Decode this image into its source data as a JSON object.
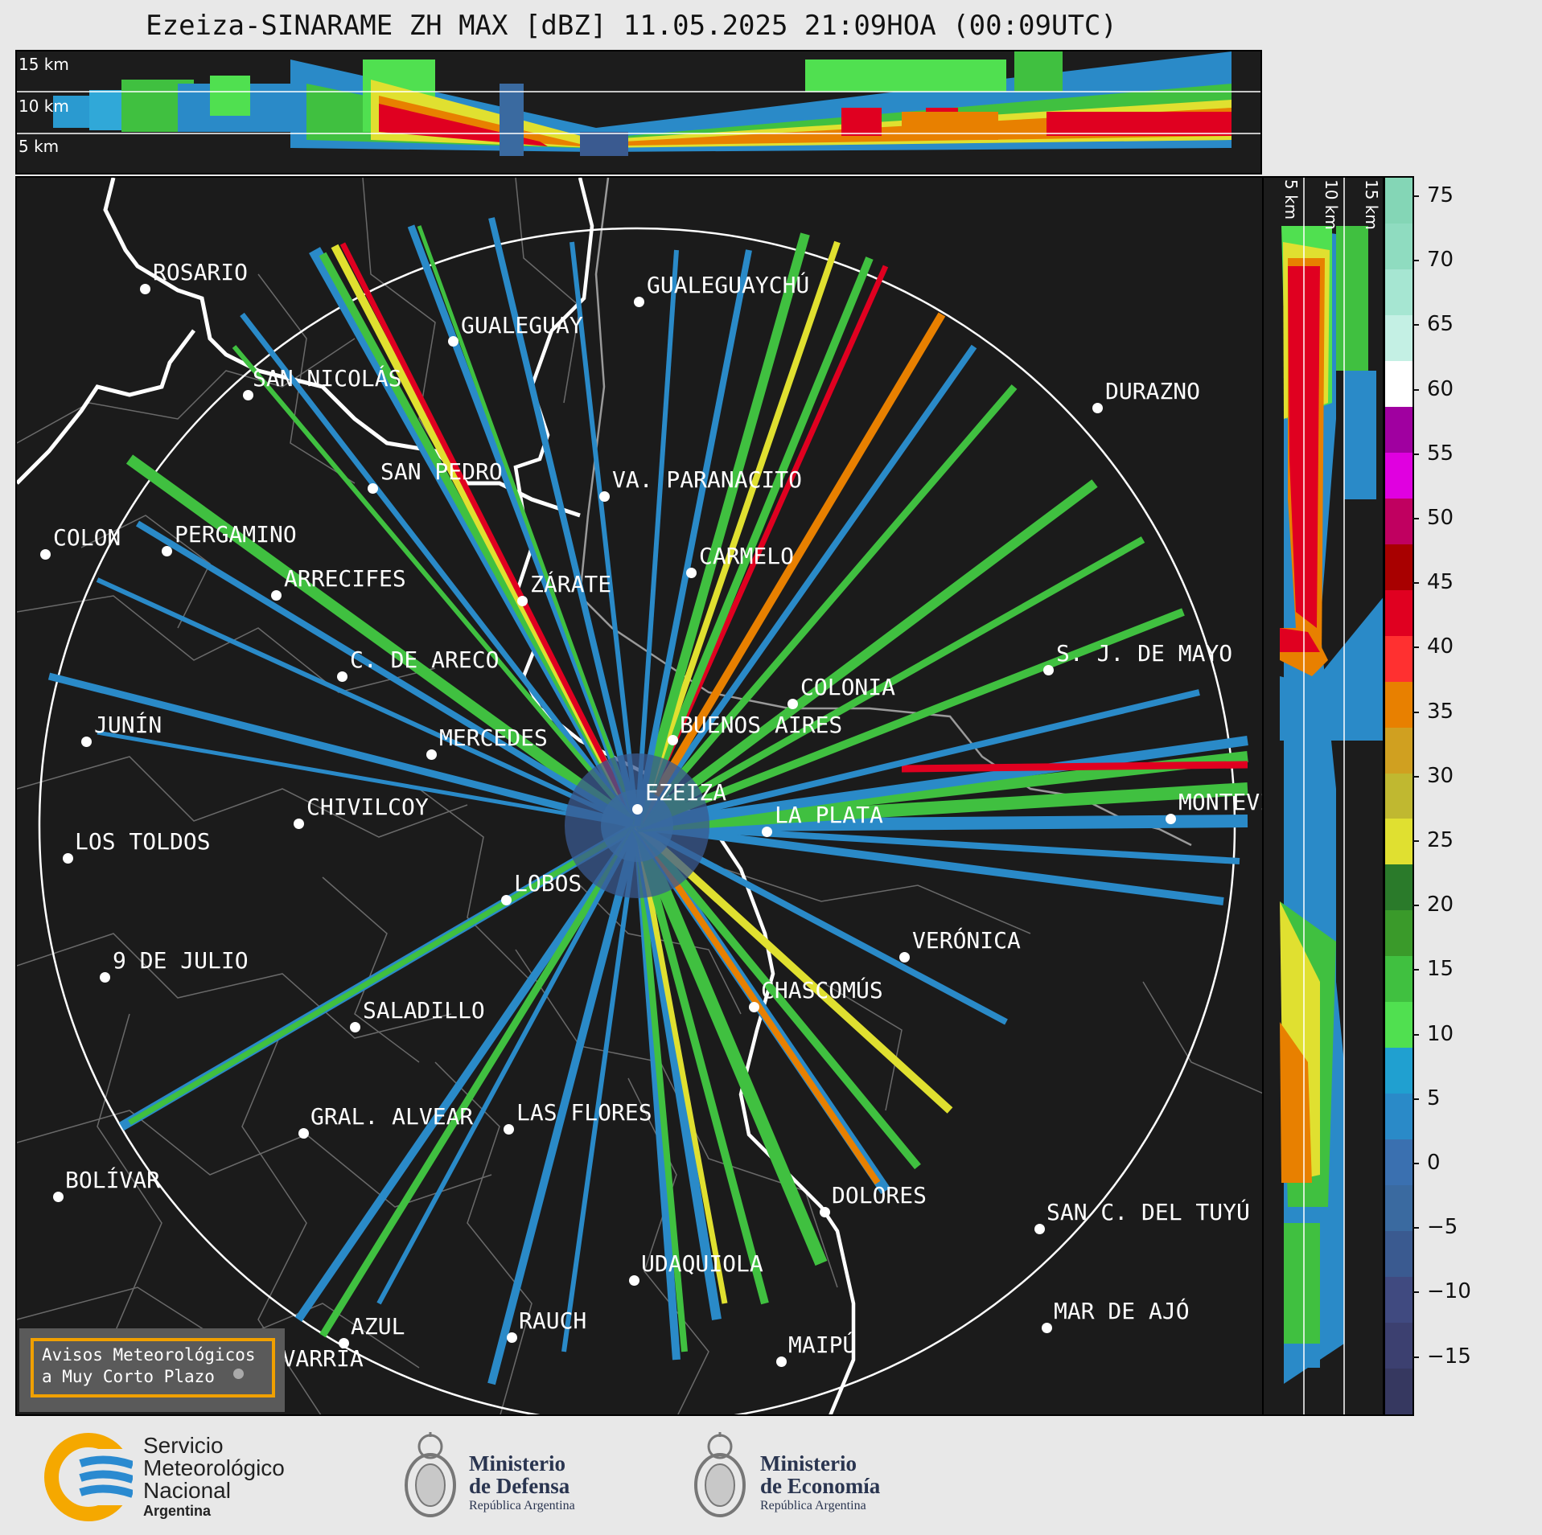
{
  "title": "Ezeiza-SINARAME ZH MAX [dBZ] 11.05.2025 21:09HOA (00:09UTC)",
  "top_panel": {
    "heights": [
      "15 km",
      "10 km",
      "5 km"
    ]
  },
  "side_panel": {
    "heights": [
      "5 km",
      "10 km",
      "15 km"
    ]
  },
  "colorbar": {
    "ticks": [
      "75",
      "70",
      "65",
      "60",
      "55",
      "50",
      "45",
      "40",
      "35",
      "30",
      "25",
      "20",
      "15",
      "10",
      "5",
      "0",
      "−5",
      "−10",
      "−15"
    ],
    "colors": [
      "#84d6b6",
      "#8fdcc0",
      "#a6e6d2",
      "#c4f0e4",
      "#ffffff",
      "#a000a0",
      "#e000e0",
      "#c00060",
      "#a80000",
      "#e00020",
      "#ff3030",
      "#e88000",
      "#d0a020",
      "#c0b830",
      "#e0e030",
      "#2a7a2a",
      "#3a9a2a",
      "#40c040",
      "#50e050",
      "#20a0d0",
      "#2a8ac8",
      "#3a70b0",
      "#3a6aa0",
      "#3a5a90",
      "#404a80",
      "#3c4070",
      "#363860"
    ]
  },
  "cities": [
    {
      "name": "ROSARIO"
    },
    {
      "name": "GUALEGUAYCHÚ"
    },
    {
      "name": "GUALEGUAY"
    },
    {
      "name": "SAN NICOLÁS"
    },
    {
      "name": "DURAZNO"
    },
    {
      "name": "SAN PEDRO"
    },
    {
      "name": "VA. PARANACITO"
    },
    {
      "name": "COLON"
    },
    {
      "name": "PERGAMINO"
    },
    {
      "name": "CARMELO"
    },
    {
      "name": "ARRECIFES"
    },
    {
      "name": "ZÁRATE"
    },
    {
      "name": "S. J. DE MAYO"
    },
    {
      "name": "C. DE ARECO"
    },
    {
      "name": "COLONIA"
    },
    {
      "name": "JUNÍN"
    },
    {
      "name": "BUENOS AIRES"
    },
    {
      "name": "MERCEDES"
    },
    {
      "name": "EZEIZA"
    },
    {
      "name": "MONTEVIDEO"
    },
    {
      "name": "CHIVILCOY"
    },
    {
      "name": "LA PLATA"
    },
    {
      "name": "LOS TOLDOS"
    },
    {
      "name": "LOBOS"
    },
    {
      "name": "VERÓNICA"
    },
    {
      "name": "9 DE JULIO"
    },
    {
      "name": "CHASCOMÚS"
    },
    {
      "name": "SALADILLO"
    },
    {
      "name": "GRAL. ALVEAR"
    },
    {
      "name": "LAS FLORES"
    },
    {
      "name": "BOLÍVAR"
    },
    {
      "name": "DOLORES"
    },
    {
      "name": "SAN C. DEL TUYÚ"
    },
    {
      "name": "UDAQUIOLA"
    },
    {
      "name": "AZUL"
    },
    {
      "name": "RAUCH"
    },
    {
      "name": "MAR DE AJÓ"
    },
    {
      "name": "OLAVARRÍA"
    },
    {
      "name": "MAIPÚ"
    }
  ],
  "aviso": {
    "line1": "Avisos Meteorológicos",
    "line2": "a Muy Corto Plazo"
  },
  "footer": {
    "smn": {
      "line1": "Servicio",
      "line2": "Meteorológico",
      "line3": "Nacional",
      "line4": "Argentina"
    },
    "defensa": {
      "line1": "Ministerio",
      "line2": "de Defensa",
      "line3": "República Argentina"
    },
    "economia": {
      "line1": "Ministerio",
      "line2": "de Economía",
      "line3": "República Argentina"
    }
  }
}
